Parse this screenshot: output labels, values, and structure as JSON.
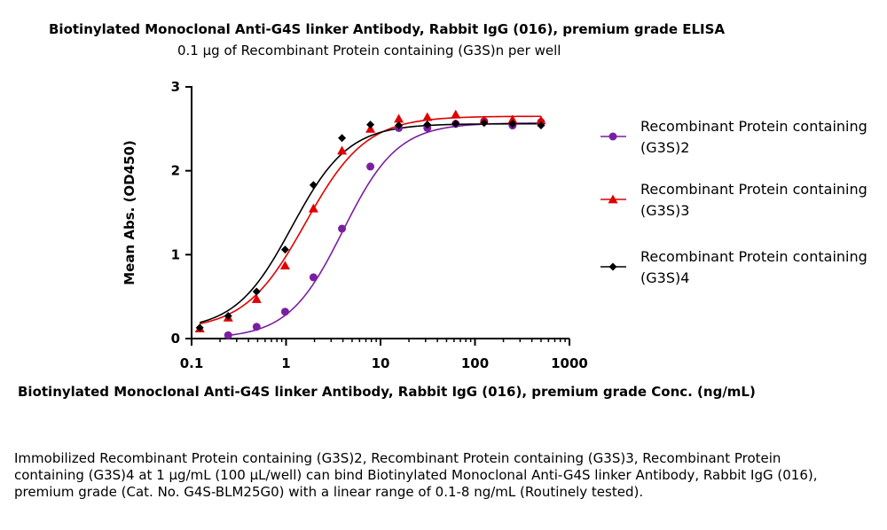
{
  "chart_data": {
    "type": "line",
    "title": "Biotinylated Monoclonal Anti-G4S linker Antibody, Rabbit IgG (016), premium grade ELISA",
    "subtitle": "0.1 μg of Recombinant Protein containing (G3S)n per well",
    "xlabel": "Biotinylated Monoclonal Anti-G4S linker Antibody, Rabbit IgG (016), premium grade Conc. (ng/mL)",
    "ylabel": "Mean Abs. (OD450)",
    "xscale": "log",
    "xlim": [
      0.1,
      1000
    ],
    "ylim": [
      0,
      3
    ],
    "xticks": [
      0.1,
      1,
      10,
      100,
      1000
    ],
    "xtick_labels": [
      "0.1",
      "1",
      "10",
      "100",
      "1000"
    ],
    "yticks": [
      0,
      1,
      2,
      3
    ],
    "ytick_labels": [
      "0",
      "1",
      "2",
      "3"
    ],
    "legend_position": "right",
    "grid": false,
    "series": [
      {
        "name_lines": [
          "Recombinant Protein containing",
          "(G3S)2"
        ],
        "color": "#7a1fa2",
        "marker": "circle",
        "points": [
          [
            0.244,
            0.04
          ],
          [
            0.488,
            0.14
          ],
          [
            0.977,
            0.32
          ],
          [
            1.95,
            0.73
          ],
          [
            3.91,
            1.31
          ],
          [
            7.81,
            2.05
          ],
          [
            15.6,
            2.51
          ],
          [
            31.3,
            2.51
          ],
          [
            62.5,
            2.56
          ],
          [
            125,
            2.59
          ],
          [
            250,
            2.54
          ],
          [
            500,
            2.58
          ]
        ],
        "fit": {
          "bottom": 0.0,
          "top": 2.57,
          "ec50": 4.0,
          "hill": 1.5
        }
      },
      {
        "name_lines": [
          "Recombinant Protein containing",
          "(G3S)3"
        ],
        "color": "#e00000",
        "marker": "triangle",
        "points": [
          [
            0.122,
            0.12
          ],
          [
            0.244,
            0.25
          ],
          [
            0.488,
            0.47
          ],
          [
            0.977,
            0.87
          ],
          [
            1.95,
            1.55
          ],
          [
            3.91,
            2.24
          ],
          [
            7.81,
            2.5
          ],
          [
            15.6,
            2.62
          ],
          [
            31.3,
            2.64
          ],
          [
            62.5,
            2.67
          ],
          [
            125,
            2.6
          ],
          [
            250,
            2.61
          ],
          [
            500,
            2.6
          ]
        ],
        "fit": {
          "bottom": 0.1,
          "top": 2.65,
          "ec50": 1.6,
          "hill": 1.35
        }
      },
      {
        "name_lines": [
          "Recombinant Protein containing",
          "(G3S)4"
        ],
        "color": "#000000",
        "marker": "diamond",
        "points": [
          [
            0.122,
            0.13
          ],
          [
            0.244,
            0.27
          ],
          [
            0.488,
            0.56
          ],
          [
            0.977,
            1.06
          ],
          [
            1.95,
            1.83
          ],
          [
            3.91,
            2.39
          ],
          [
            7.81,
            2.55
          ],
          [
            15.6,
            2.54
          ],
          [
            31.3,
            2.55
          ],
          [
            62.5,
            2.56
          ],
          [
            125,
            2.57
          ],
          [
            250,
            2.56
          ],
          [
            500,
            2.54
          ]
        ],
        "fit": {
          "bottom": 0.1,
          "top": 2.56,
          "ec50": 1.15,
          "hill": 1.45
        }
      }
    ]
  },
  "caption": "Immobilized Recombinant Protein containing (G3S)2, Recombinant Protein containing (G3S)3, Recombinant Protein containing (G3S)4 at 1 μg/mL (100 μL/well) can bind Biotinylated Monoclonal Anti-G4S linker Antibody, Rabbit IgG (016), premium grade (Cat. No. G4S-BLM25G0) with a linear range of 0.1-8 ng/mL (Routinely tested)."
}
